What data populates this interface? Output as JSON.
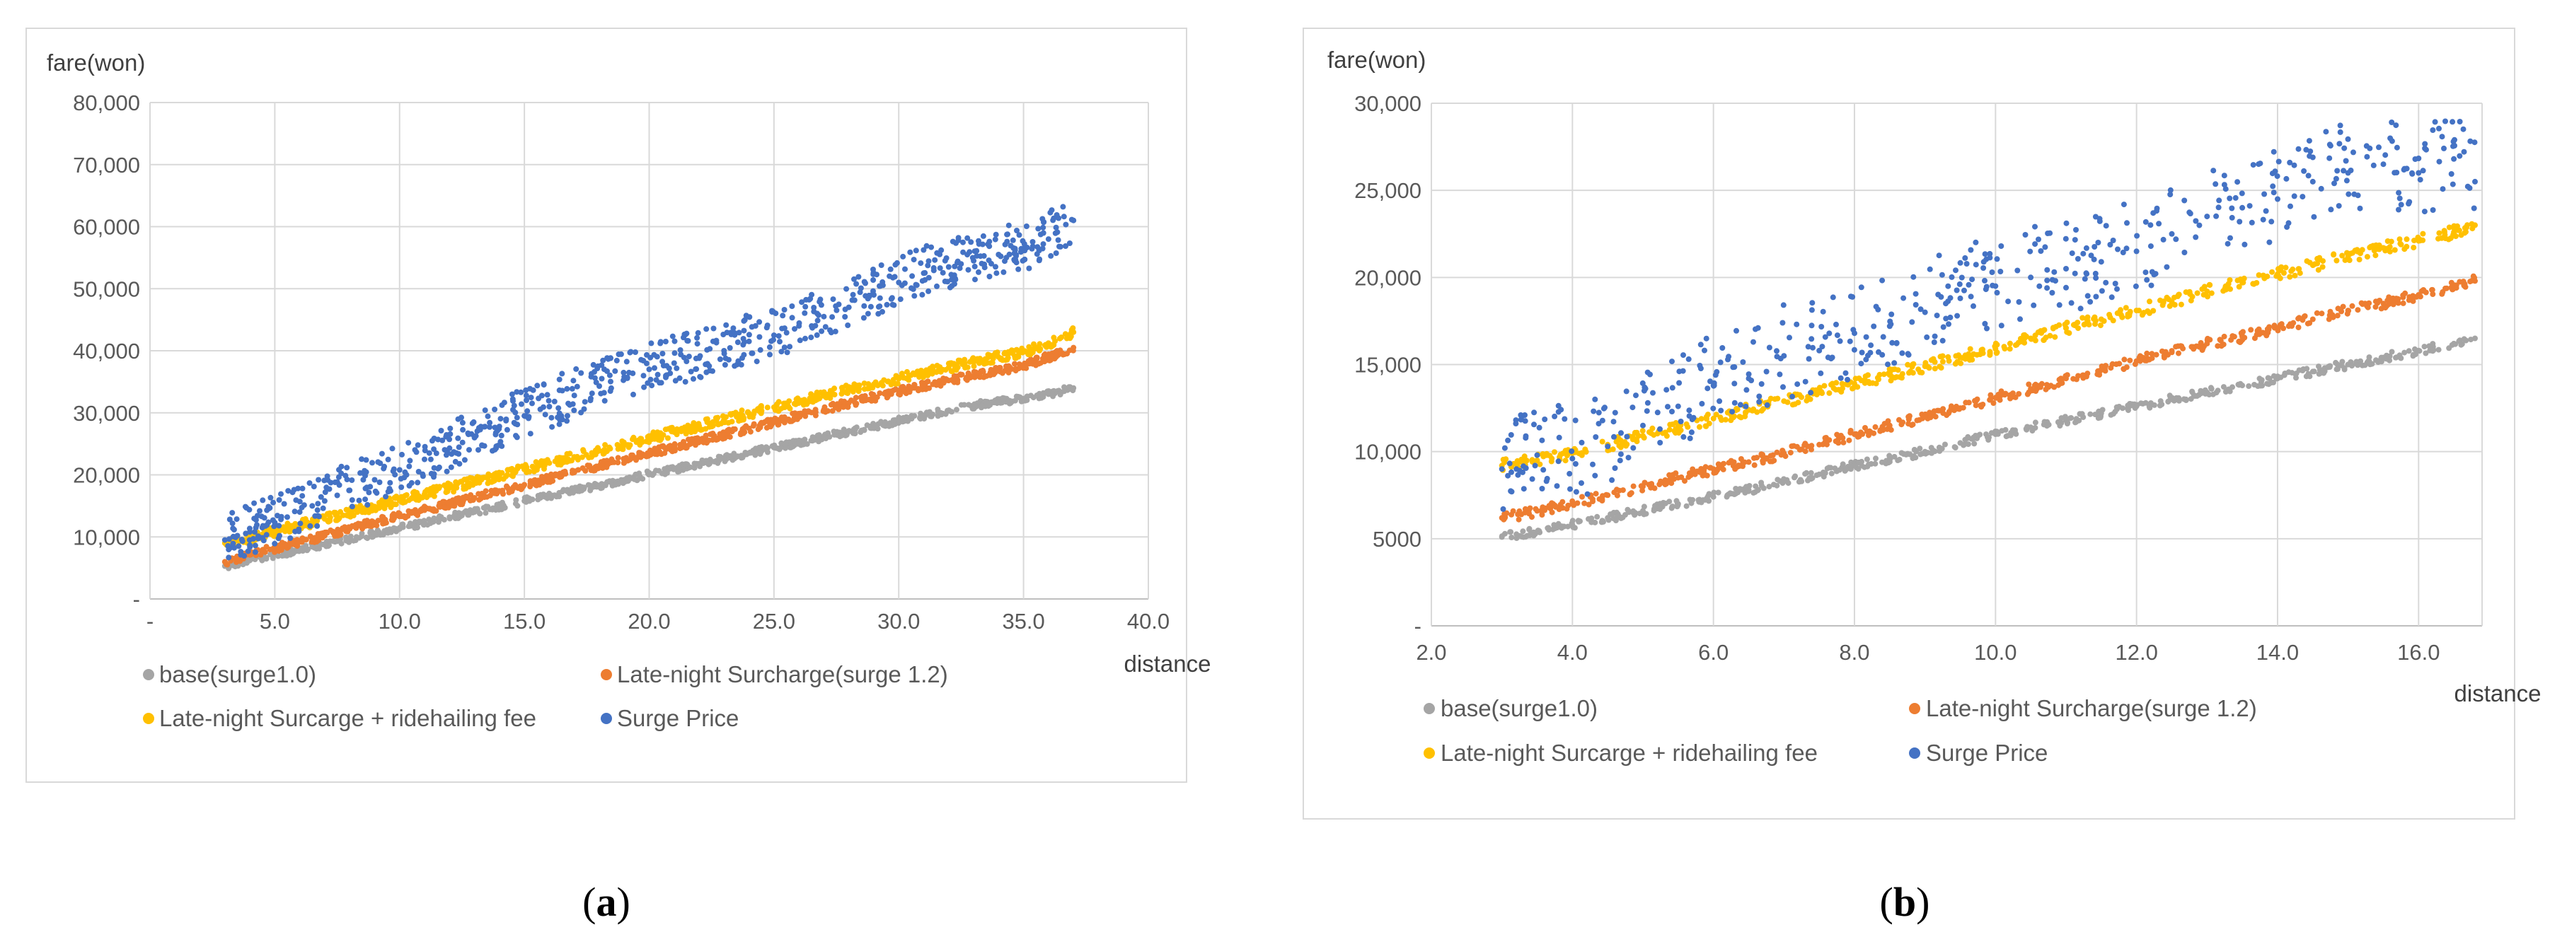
{
  "chart_data": [
    {
      "type": "scatter",
      "panel_label": "a",
      "ylabel": "fare(won)",
      "xlabel": "distance",
      "xlim": [
        0,
        40
      ],
      "ylim": [
        0,
        80000
      ],
      "x_ticks": [
        0,
        5,
        10,
        15,
        20,
        25,
        30,
        35,
        40
      ],
      "x_tick_labels": [
        "-",
        "5.0",
        "10.0",
        "15.0",
        "20.0",
        "25.0",
        "30.0",
        "35.0",
        "40.0"
      ],
      "y_ticks": [
        0,
        10000,
        20000,
        30000,
        40000,
        50000,
        60000,
        70000,
        80000
      ],
      "y_tick_labels": [
        "-",
        "10,000",
        "20,000",
        "30,000",
        "40,000",
        "50,000",
        "60,000",
        "70,000",
        "80,000"
      ],
      "grid": true,
      "legend_position": "bottom",
      "series": [
        {
          "name": "base(surge1.0)",
          "color": "#a5a5a5",
          "x": [
            3.0,
            3.5,
            4.0,
            4.5,
            5.0,
            5.5,
            6.0,
            6.5,
            7.0,
            7.5,
            8.0,
            9.0,
            10.0,
            11.0,
            12.0,
            13.0,
            14.0,
            15.0,
            16.0,
            17.0,
            18.0,
            19.0,
            20.0,
            21.0,
            22.0,
            23.0,
            24.0,
            25.0,
            26.0,
            27.0,
            28.0,
            29.0,
            30.0,
            31.0,
            32.0,
            33.0,
            34.0,
            35.0,
            36.0,
            37.0
          ],
          "y": [
            5300,
            5800,
            6200,
            6700,
            7100,
            7500,
            8000,
            8400,
            8800,
            9300,
            9700,
            10600,
            11400,
            12300,
            13200,
            14000,
            14900,
            15800,
            16600,
            17500,
            18300,
            19200,
            20100,
            20900,
            21800,
            22600,
            23500,
            24400,
            25200,
            26100,
            27000,
            27800,
            28700,
            29500,
            30400,
            31200,
            31800,
            32300,
            33000,
            34000
          ]
        },
        {
          "name": "Late-night Surcharge(surge 1.2)",
          "color": "#ed7d31",
          "x": [
            3.0,
            3.5,
            4.0,
            4.5,
            5.0,
            5.5,
            6.0,
            6.5,
            7.0,
            7.5,
            8.0,
            9.0,
            10.0,
            11.0,
            12.0,
            13.0,
            14.0,
            15.0,
            16.0,
            17.0,
            18.0,
            19.0,
            20.0,
            21.0,
            22.0,
            23.0,
            24.0,
            25.0,
            26.0,
            27.0,
            28.0,
            29.0,
            30.0,
            31.0,
            32.0,
            33.0,
            34.0,
            35.0,
            36.0,
            37.0
          ],
          "y": [
            6000,
            6500,
            7100,
            7600,
            8200,
            8700,
            9200,
            9700,
            10200,
            10700,
            11300,
            12300,
            13300,
            14300,
            15300,
            16300,
            17400,
            18400,
            19400,
            20400,
            21400,
            22400,
            23400,
            24500,
            25500,
            26500,
            27500,
            28500,
            29500,
            30500,
            31600,
            32500,
            33500,
            34300,
            35200,
            36000,
            36800,
            37600,
            39000,
            40500
          ]
        },
        {
          "name": "Late-night Surcarge + ridehailing fee",
          "color": "#ffc000",
          "x": [
            3.0,
            3.5,
            4.0,
            4.5,
            5.0,
            5.5,
            6.0,
            6.5,
            7.0,
            7.5,
            8.0,
            9.0,
            10.0,
            11.0,
            12.0,
            13.0,
            14.0,
            15.0,
            16.0,
            17.0,
            18.0,
            19.0,
            20.0,
            21.0,
            22.0,
            23.0,
            24.0,
            25.0,
            26.0,
            27.0,
            28.0,
            29.0,
            30.0,
            31.0,
            32.0,
            33.0,
            34.0,
            35.0,
            36.0,
            37.0
          ],
          "y": [
            9000,
            9400,
            9900,
            10400,
            10900,
            11400,
            11900,
            12400,
            12900,
            13400,
            13900,
            14900,
            15900,
            16900,
            17900,
            18900,
            19900,
            20900,
            21900,
            22900,
            23900,
            24900,
            25900,
            26900,
            27900,
            28900,
            29900,
            30900,
            31800,
            32800,
            33700,
            34600,
            35500,
            36400,
            37300,
            38200,
            39000,
            39800,
            41000,
            43000
          ]
        },
        {
          "name": "Surge Price",
          "color": "#4472c4",
          "x": [
            3.0,
            3.5,
            4.0,
            4.5,
            5.0,
            5.5,
            6.0,
            6.5,
            7.0,
            7.5,
            8.0,
            9.0,
            10.0,
            11.0,
            12.0,
            13.0,
            14.0,
            15.0,
            16.0,
            17.0,
            18.0,
            19.0,
            20.0,
            21.0,
            22.0,
            23.0,
            24.0,
            25.0,
            26.0,
            27.0,
            28.0,
            29.0,
            30.0,
            31.0,
            32.0,
            33.0,
            34.0,
            35.0,
            36.0,
            37.0
          ],
          "y": [
            9500,
            10200,
            10800,
            11500,
            12300,
            13200,
            14000,
            15000,
            15800,
            16700,
            17500,
            19200,
            20800,
            22500,
            24300,
            26000,
            27800,
            29500,
            31000,
            32800,
            34300,
            35800,
            37000,
            38000,
            38800,
            40000,
            41500,
            42500,
            44000,
            45500,
            47000,
            49000,
            51000,
            52500,
            53500,
            54500,
            55500,
            56500,
            58000,
            61000
          ]
        }
      ]
    },
    {
      "type": "scatter",
      "panel_label": "b",
      "ylabel": "fare(won)",
      "xlabel": "distance",
      "xlim": [
        2.0,
        16.9
      ],
      "ylim": [
        0,
        30000
      ],
      "x_ticks": [
        2,
        4,
        6,
        8,
        10,
        12,
        14,
        16
      ],
      "x_tick_labels": [
        "2.0",
        "4.0",
        "6.0",
        "8.0",
        "10.0",
        "12.0",
        "14.0",
        "16.0"
      ],
      "y_ticks": [
        0,
        5000,
        10000,
        15000,
        20000,
        25000,
        30000
      ],
      "y_tick_labels": [
        "-",
        "5000",
        "10,000",
        "15,000",
        "20,000",
        "25,000",
        "30,000"
      ],
      "grid": true,
      "legend_position": "bottom",
      "series": [
        {
          "name": "base(surge1.0)",
          "color": "#a5a5a5",
          "x": [
            3.0,
            3.5,
            4.0,
            4.5,
            5.0,
            5.5,
            6.0,
            6.5,
            7.0,
            7.5,
            8.0,
            8.5,
            9.0,
            9.5,
            10.0,
            10.5,
            11.0,
            11.5,
            12.0,
            12.5,
            13.0,
            13.5,
            14.0,
            14.5,
            15.0,
            15.5,
            16.0,
            16.5,
            16.8
          ],
          "y": [
            5100,
            5400,
            5800,
            6200,
            6600,
            7000,
            7400,
            7800,
            8300,
            8700,
            9200,
            9600,
            10000,
            10500,
            11000,
            11400,
            11800,
            12200,
            12600,
            13000,
            13400,
            13800,
            14200,
            14600,
            15000,
            15400,
            15800,
            16200,
            16500
          ]
        },
        {
          "name": "Late-night Surcharge(surge 1.2)",
          "color": "#ed7d31",
          "x": [
            3.0,
            3.5,
            4.0,
            4.5,
            5.0,
            5.5,
            6.0,
            6.5,
            7.0,
            7.5,
            8.0,
            8.5,
            9.0,
            9.5,
            10.0,
            10.5,
            11.0,
            11.5,
            12.0,
            12.5,
            13.0,
            13.5,
            14.0,
            14.5,
            15.0,
            15.5,
            16.0,
            16.5,
            16.8
          ],
          "y": [
            6200,
            6600,
            7000,
            7500,
            8000,
            8500,
            9000,
            9400,
            9900,
            10400,
            11000,
            11500,
            12000,
            12500,
            13100,
            13600,
            14200,
            14700,
            15200,
            15700,
            16200,
            16600,
            17100,
            17600,
            18100,
            18500,
            19000,
            19500,
            19800
          ]
        },
        {
          "name": "Late-night Surcarge + ridehailing fee",
          "color": "#ffc000",
          "x": [
            3.0,
            3.5,
            4.0,
            4.5,
            5.0,
            5.5,
            6.0,
            6.5,
            7.0,
            7.5,
            8.0,
            8.5,
            9.0,
            9.5,
            10.0,
            10.5,
            11.0,
            11.5,
            12.0,
            12.5,
            13.0,
            13.5,
            14.0,
            14.5,
            15.0,
            15.5,
            16.0,
            16.5,
            16.8
          ],
          "y": [
            9200,
            9500,
            9900,
            10400,
            10900,
            11400,
            11900,
            12400,
            12900,
            13400,
            13900,
            14400,
            14900,
            15400,
            15900,
            16500,
            17100,
            17600,
            18100,
            18600,
            19200,
            19700,
            20200,
            20700,
            21200,
            21700,
            22100,
            22600,
            23000
          ]
        },
        {
          "name": "Surge Price",
          "color": "#4472c4",
          "x": [
            3.0,
            3.5,
            4.0,
            4.5,
            5.0,
            5.5,
            6.0,
            6.5,
            7.0,
            7.5,
            8.0,
            8.5,
            9.0,
            9.5,
            10.0,
            10.5,
            11.0,
            11.5,
            12.0,
            12.5,
            13.0,
            13.5,
            14.0,
            14.5,
            15.0,
            15.5,
            16.0,
            16.5,
            16.8
          ],
          "y": [
            9000,
            9800,
            9600,
            10300,
            11500,
            12600,
            13800,
            14200,
            15500,
            15800,
            16800,
            17200,
            18000,
            18800,
            19500,
            20000,
            20500,
            20900,
            21500,
            22500,
            23500,
            24000,
            24500,
            25500,
            26000,
            26500,
            26000,
            26800,
            25500
          ]
        }
      ]
    }
  ]
}
